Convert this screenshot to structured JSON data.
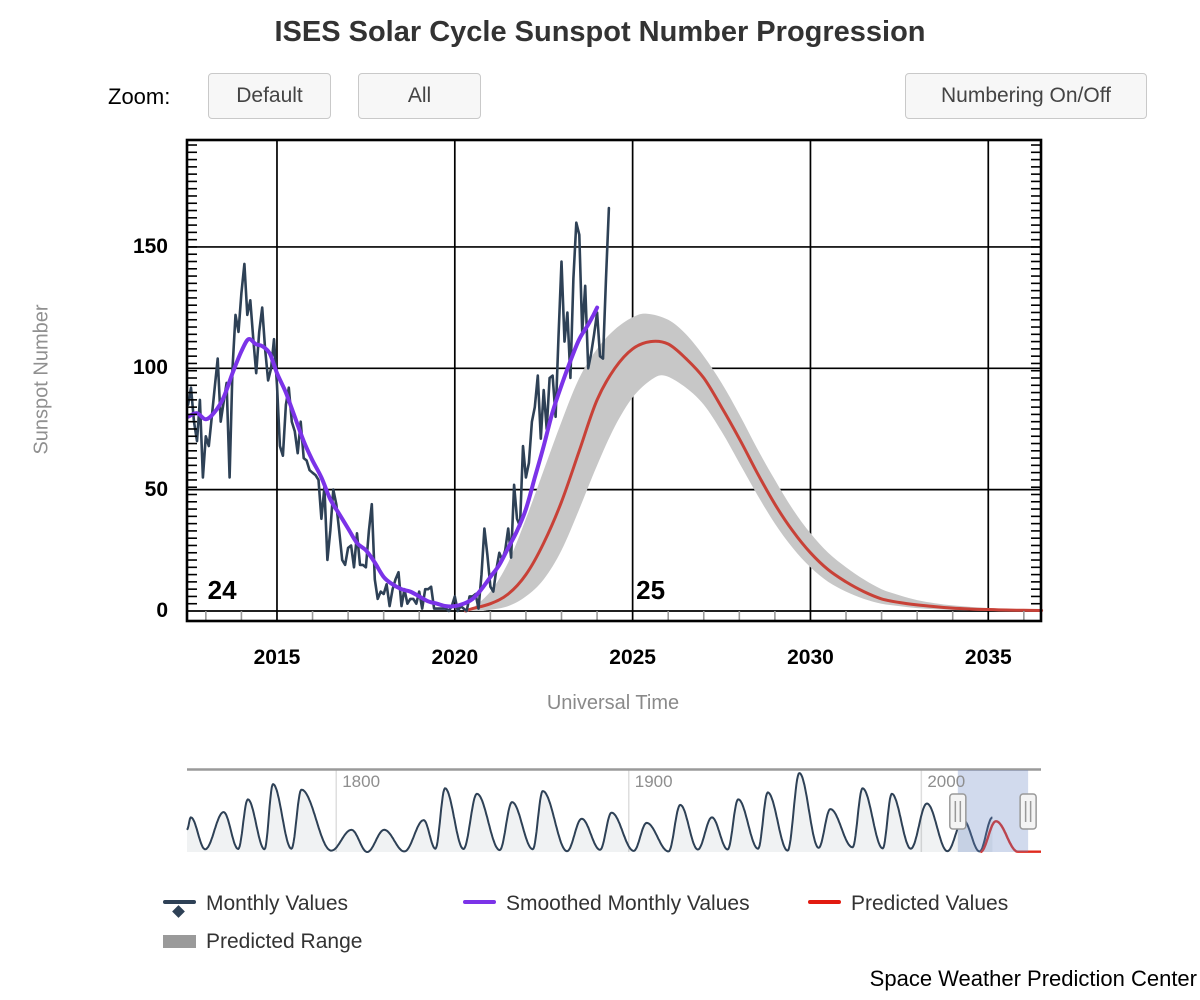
{
  "title": "ISES Solar Cycle Sunspot Number Progression",
  "controls": {
    "zoom_label": "Zoom:",
    "default_button": "Default",
    "all_button": "All",
    "numbering_button": "Numbering On/Off"
  },
  "axes": {
    "y_title": "Sunspot Number",
    "x_title": "Universal Time",
    "y_ticks": [
      "0",
      "50",
      "100",
      "150"
    ],
    "x_ticks": [
      "2015",
      "2020",
      "2025",
      "2030",
      "2035"
    ],
    "navigator_ticks": [
      "1800",
      "1900",
      "2000"
    ]
  },
  "cycles": [
    {
      "label": "24",
      "year": 2013.05
    },
    {
      "label": "25",
      "year": 2025.1
    }
  ],
  "legend": [
    {
      "label": "Monthly Values",
      "color": "#2e4156",
      "type": "line-diamond"
    },
    {
      "label": "Smoothed Monthly Values",
      "color": "#7b33e8",
      "type": "line"
    },
    {
      "label": "Predicted Values",
      "color": "#e21a10",
      "type": "line"
    },
    {
      "label": "Predicted Range",
      "color": "#9a9a9a",
      "type": "rect"
    }
  ],
  "footer": "Space Weather Prediction Center",
  "colors": {
    "monthly": "#2e4156",
    "smoothed": "#7b33e8",
    "predicted": "#c84137",
    "predicted_range": "#c7c7c7",
    "navigator_line": "#2e4156",
    "navigator_fill": "rgba(46,65,86,0.07)",
    "navigator_predicted": "#e02a1e",
    "navigator_mask": "rgba(102,133,194,0.3)",
    "gridline": "#000000",
    "minor_tick_x": "#999999"
  },
  "chart_data": {
    "type": "line",
    "title": "ISES Solar Cycle Sunspot Number Progression",
    "xlabel": "Universal Time",
    "ylabel": "Sunspot Number",
    "xlim": [
      2012.47,
      2036.5
    ],
    "ylim": [
      -4,
      194
    ],
    "grid": true,
    "legend_position": "bottom",
    "navigator_xlim": [
      1749,
      2040.9
    ],
    "navigator_selection": [
      2012.47,
      2036.5
    ],
    "series": [
      {
        "name": "Monthly Values",
        "start": 2012.5,
        "step": 0.0833333,
        "values": [
          85,
          92,
          78,
          70,
          87,
          55,
          72,
          68,
          80,
          92,
          104,
          78,
          86,
          94,
          55,
          100,
          122,
          115,
          131,
          143,
          122,
          128,
          112,
          98,
          115,
          125,
          108,
          95,
          100,
          112,
          93,
          68,
          64,
          85,
          92,
          78,
          74,
          65,
          78,
          63,
          62,
          58,
          57,
          56,
          54,
          38,
          51,
          21,
          33,
          50,
          44,
          33,
          21,
          19,
          26,
          27,
          18,
          32,
          19,
          19,
          18,
          33,
          44,
          13,
          5,
          8,
          7,
          11,
          2,
          9,
          13,
          16,
          2,
          9,
          3,
          5,
          5,
          3,
          8,
          1,
          9,
          9,
          10,
          1,
          1,
          1,
          1,
          1,
          0,
          2,
          6,
          0,
          2,
          1,
          0,
          6,
          6,
          7,
          1,
          15,
          34,
          23,
          10,
          8,
          17,
          24,
          21,
          25,
          34,
          22,
          52,
          38,
          35,
          68,
          55,
          61,
          78,
          84,
          97,
          71,
          91,
          75,
          96,
          97,
          80,
          113,
          144,
          111,
          123,
          96,
          137,
          160,
          155,
          115,
          134,
          100,
          106,
          114,
          123,
          105,
          104,
          137,
          166
        ]
      },
      {
        "name": "Smoothed Monthly Values",
        "points": [
          [
            2012.5,
            80
          ],
          [
            2012.75,
            81.5
          ],
          [
            2013,
            79
          ],
          [
            2013.25,
            82
          ],
          [
            2013.5,
            88
          ],
          [
            2013.75,
            98
          ],
          [
            2014,
            107
          ],
          [
            2014.2,
            112
          ],
          [
            2014.4,
            110
          ],
          [
            2014.6,
            109
          ],
          [
            2014.8,
            106
          ],
          [
            2015,
            98
          ],
          [
            2015.25,
            90
          ],
          [
            2015.5,
            80
          ],
          [
            2015.75,
            70
          ],
          [
            2016,
            62
          ],
          [
            2016.25,
            55
          ],
          [
            2016.5,
            46
          ],
          [
            2016.75,
            40
          ],
          [
            2017,
            34
          ],
          [
            2017.25,
            28
          ],
          [
            2017.5,
            25
          ],
          [
            2017.75,
            20
          ],
          [
            2018,
            14
          ],
          [
            2018.25,
            11
          ],
          [
            2018.5,
            9
          ],
          [
            2018.75,
            8
          ],
          [
            2019,
            6
          ],
          [
            2019.25,
            4
          ],
          [
            2019.5,
            3
          ],
          [
            2019.75,
            2
          ],
          [
            2020,
            2
          ],
          [
            2020.25,
            3
          ],
          [
            2020.5,
            5
          ],
          [
            2020.75,
            9
          ],
          [
            2021,
            14
          ],
          [
            2021.25,
            19
          ],
          [
            2021.5,
            26
          ],
          [
            2021.75,
            33
          ],
          [
            2022,
            42
          ],
          [
            2022.25,
            55
          ],
          [
            2022.5,
            68
          ],
          [
            2022.75,
            82
          ],
          [
            2023,
            93
          ],
          [
            2023.25,
            103
          ],
          [
            2023.5,
            112
          ],
          [
            2023.75,
            118
          ],
          [
            2023.9,
            122
          ],
          [
            2024,
            125
          ]
        ]
      },
      {
        "name": "Predicted Values",
        "points": [
          [
            2020.3,
            0
          ],
          [
            2020.5,
            1
          ],
          [
            2021,
            3
          ],
          [
            2021.5,
            7
          ],
          [
            2022,
            15
          ],
          [
            2022.5,
            28
          ],
          [
            2023,
            45
          ],
          [
            2023.5,
            66
          ],
          [
            2024,
            87
          ],
          [
            2024.5,
            100
          ],
          [
            2025,
            108
          ],
          [
            2025.5,
            111
          ],
          [
            2026,
            110
          ],
          [
            2026.5,
            104
          ],
          [
            2027,
            96
          ],
          [
            2027.5,
            84
          ],
          [
            2028,
            71
          ],
          [
            2028.5,
            57
          ],
          [
            2029,
            44
          ],
          [
            2029.5,
            33
          ],
          [
            2030,
            24
          ],
          [
            2030.5,
            17
          ],
          [
            2031,
            12
          ],
          [
            2031.5,
            8
          ],
          [
            2032,
            5
          ],
          [
            2032.5,
            3.5
          ],
          [
            2033,
            2.5
          ],
          [
            2033.5,
            1.8
          ],
          [
            2034,
            1.2
          ],
          [
            2034.5,
            0.8
          ],
          [
            2035,
            0.6
          ],
          [
            2035.5,
            0.4
          ],
          [
            2036,
            0.3
          ],
          [
            2036.5,
            0.2
          ]
        ]
      },
      {
        "name": "Predicted Range",
        "upper": [
          [
            2020.4,
            0
          ],
          [
            2021,
            8
          ],
          [
            2021.5,
            20
          ],
          [
            2022,
            38
          ],
          [
            2022.5,
            58
          ],
          [
            2023,
            78
          ],
          [
            2023.5,
            96
          ],
          [
            2024,
            108
          ],
          [
            2024.5,
            116
          ],
          [
            2025,
            121
          ],
          [
            2025.4,
            122.5
          ],
          [
            2026,
            120
          ],
          [
            2026.5,
            114
          ],
          [
            2027,
            105
          ],
          [
            2027.5,
            94
          ],
          [
            2028,
            81
          ],
          [
            2028.5,
            67
          ],
          [
            2029,
            54
          ],
          [
            2029.5,
            42
          ],
          [
            2030,
            32
          ],
          [
            2030.5,
            24
          ],
          [
            2031,
            18
          ],
          [
            2031.5,
            13
          ],
          [
            2032,
            9
          ],
          [
            2032.5,
            6.5
          ],
          [
            2033,
            4.5
          ],
          [
            2033.5,
            3.2
          ],
          [
            2034,
            2.3
          ],
          [
            2034.5,
            1.7
          ],
          [
            2035,
            1.2
          ],
          [
            2035.5,
            0.9
          ],
          [
            2036,
            0.7
          ],
          [
            2036.5,
            0.6
          ]
        ],
        "lower": [
          [
            2020.8,
            0
          ],
          [
            2021,
            0.5
          ],
          [
            2021.5,
            2
          ],
          [
            2022,
            6
          ],
          [
            2022.5,
            13
          ],
          [
            2023,
            25
          ],
          [
            2023.5,
            42
          ],
          [
            2024,
            60
          ],
          [
            2024.5,
            76
          ],
          [
            2025,
            88
          ],
          [
            2025.5,
            95
          ],
          [
            2025.9,
            97
          ],
          [
            2026.5,
            92
          ],
          [
            2027,
            85
          ],
          [
            2027.5,
            74
          ],
          [
            2028,
            61
          ],
          [
            2028.5,
            48
          ],
          [
            2029,
            36
          ],
          [
            2029.5,
            26
          ],
          [
            2030,
            18
          ],
          [
            2030.5,
            12
          ],
          [
            2031,
            8
          ],
          [
            2031.5,
            5
          ],
          [
            2032,
            3
          ],
          [
            2032.5,
            2
          ],
          [
            2033,
            1.2
          ],
          [
            2033.5,
            0.7
          ],
          [
            2034,
            0.4
          ],
          [
            2034.5,
            0.2
          ],
          [
            2035,
            0.1
          ],
          [
            2035.5,
            0
          ],
          [
            2036,
            0
          ],
          [
            2036.5,
            0
          ]
        ]
      }
    ],
    "navigator_series": {
      "extrema": [
        [
          1749,
          80
        ],
        [
          1750.3,
          125
        ],
        [
          1755.2,
          10
        ],
        [
          1761.5,
          144
        ],
        [
          1766.5,
          11
        ],
        [
          1769.8,
          190
        ],
        [
          1775.5,
          10
        ],
        [
          1778.4,
          245
        ],
        [
          1784.7,
          12
        ],
        [
          1788.1,
          225
        ],
        [
          1798.3,
          5
        ],
        [
          1805.2,
          80
        ],
        [
          1810.6,
          0
        ],
        [
          1816.4,
          80
        ],
        [
          1823.3,
          2
        ],
        [
          1829.9,
          115
        ],
        [
          1833.9,
          12
        ],
        [
          1837.2,
          230
        ],
        [
          1843.5,
          11
        ],
        [
          1848.1,
          210
        ],
        [
          1855.9,
          7
        ],
        [
          1860.1,
          180
        ],
        [
          1867.2,
          10
        ],
        [
          1870.6,
          220
        ],
        [
          1878.9,
          3
        ],
        [
          1883.9,
          120
        ],
        [
          1890.2,
          8
        ],
        [
          1894.1,
          142
        ],
        [
          1901.7,
          4
        ],
        [
          1906.1,
          105
        ],
        [
          1913.6,
          2
        ],
        [
          1917.6,
          170
        ],
        [
          1923.6,
          9
        ],
        [
          1928.4,
          125
        ],
        [
          1933.8,
          9
        ],
        [
          1937.4,
          190
        ],
        [
          1944.2,
          12
        ],
        [
          1947.5,
          215
        ],
        [
          1954.3,
          5
        ],
        [
          1958.3,
          285
        ],
        [
          1964.9,
          15
        ],
        [
          1968.9,
          155
        ],
        [
          1976.5,
          17
        ],
        [
          1979.9,
          230
        ],
        [
          1986.8,
          13
        ],
        [
          1989.9,
          210
        ],
        [
          1996.4,
          12
        ],
        [
          2001.9,
          175
        ],
        [
          2008.9,
          3
        ],
        [
          2014.3,
          116
        ],
        [
          2019.9,
          2
        ],
        [
          2024.3,
          125
        ]
      ],
      "predicted_extrema": [
        [
          2020.2,
          0
        ],
        [
          2025.5,
          111
        ],
        [
          2033,
          1
        ],
        [
          2040.9,
          1
        ]
      ]
    }
  }
}
